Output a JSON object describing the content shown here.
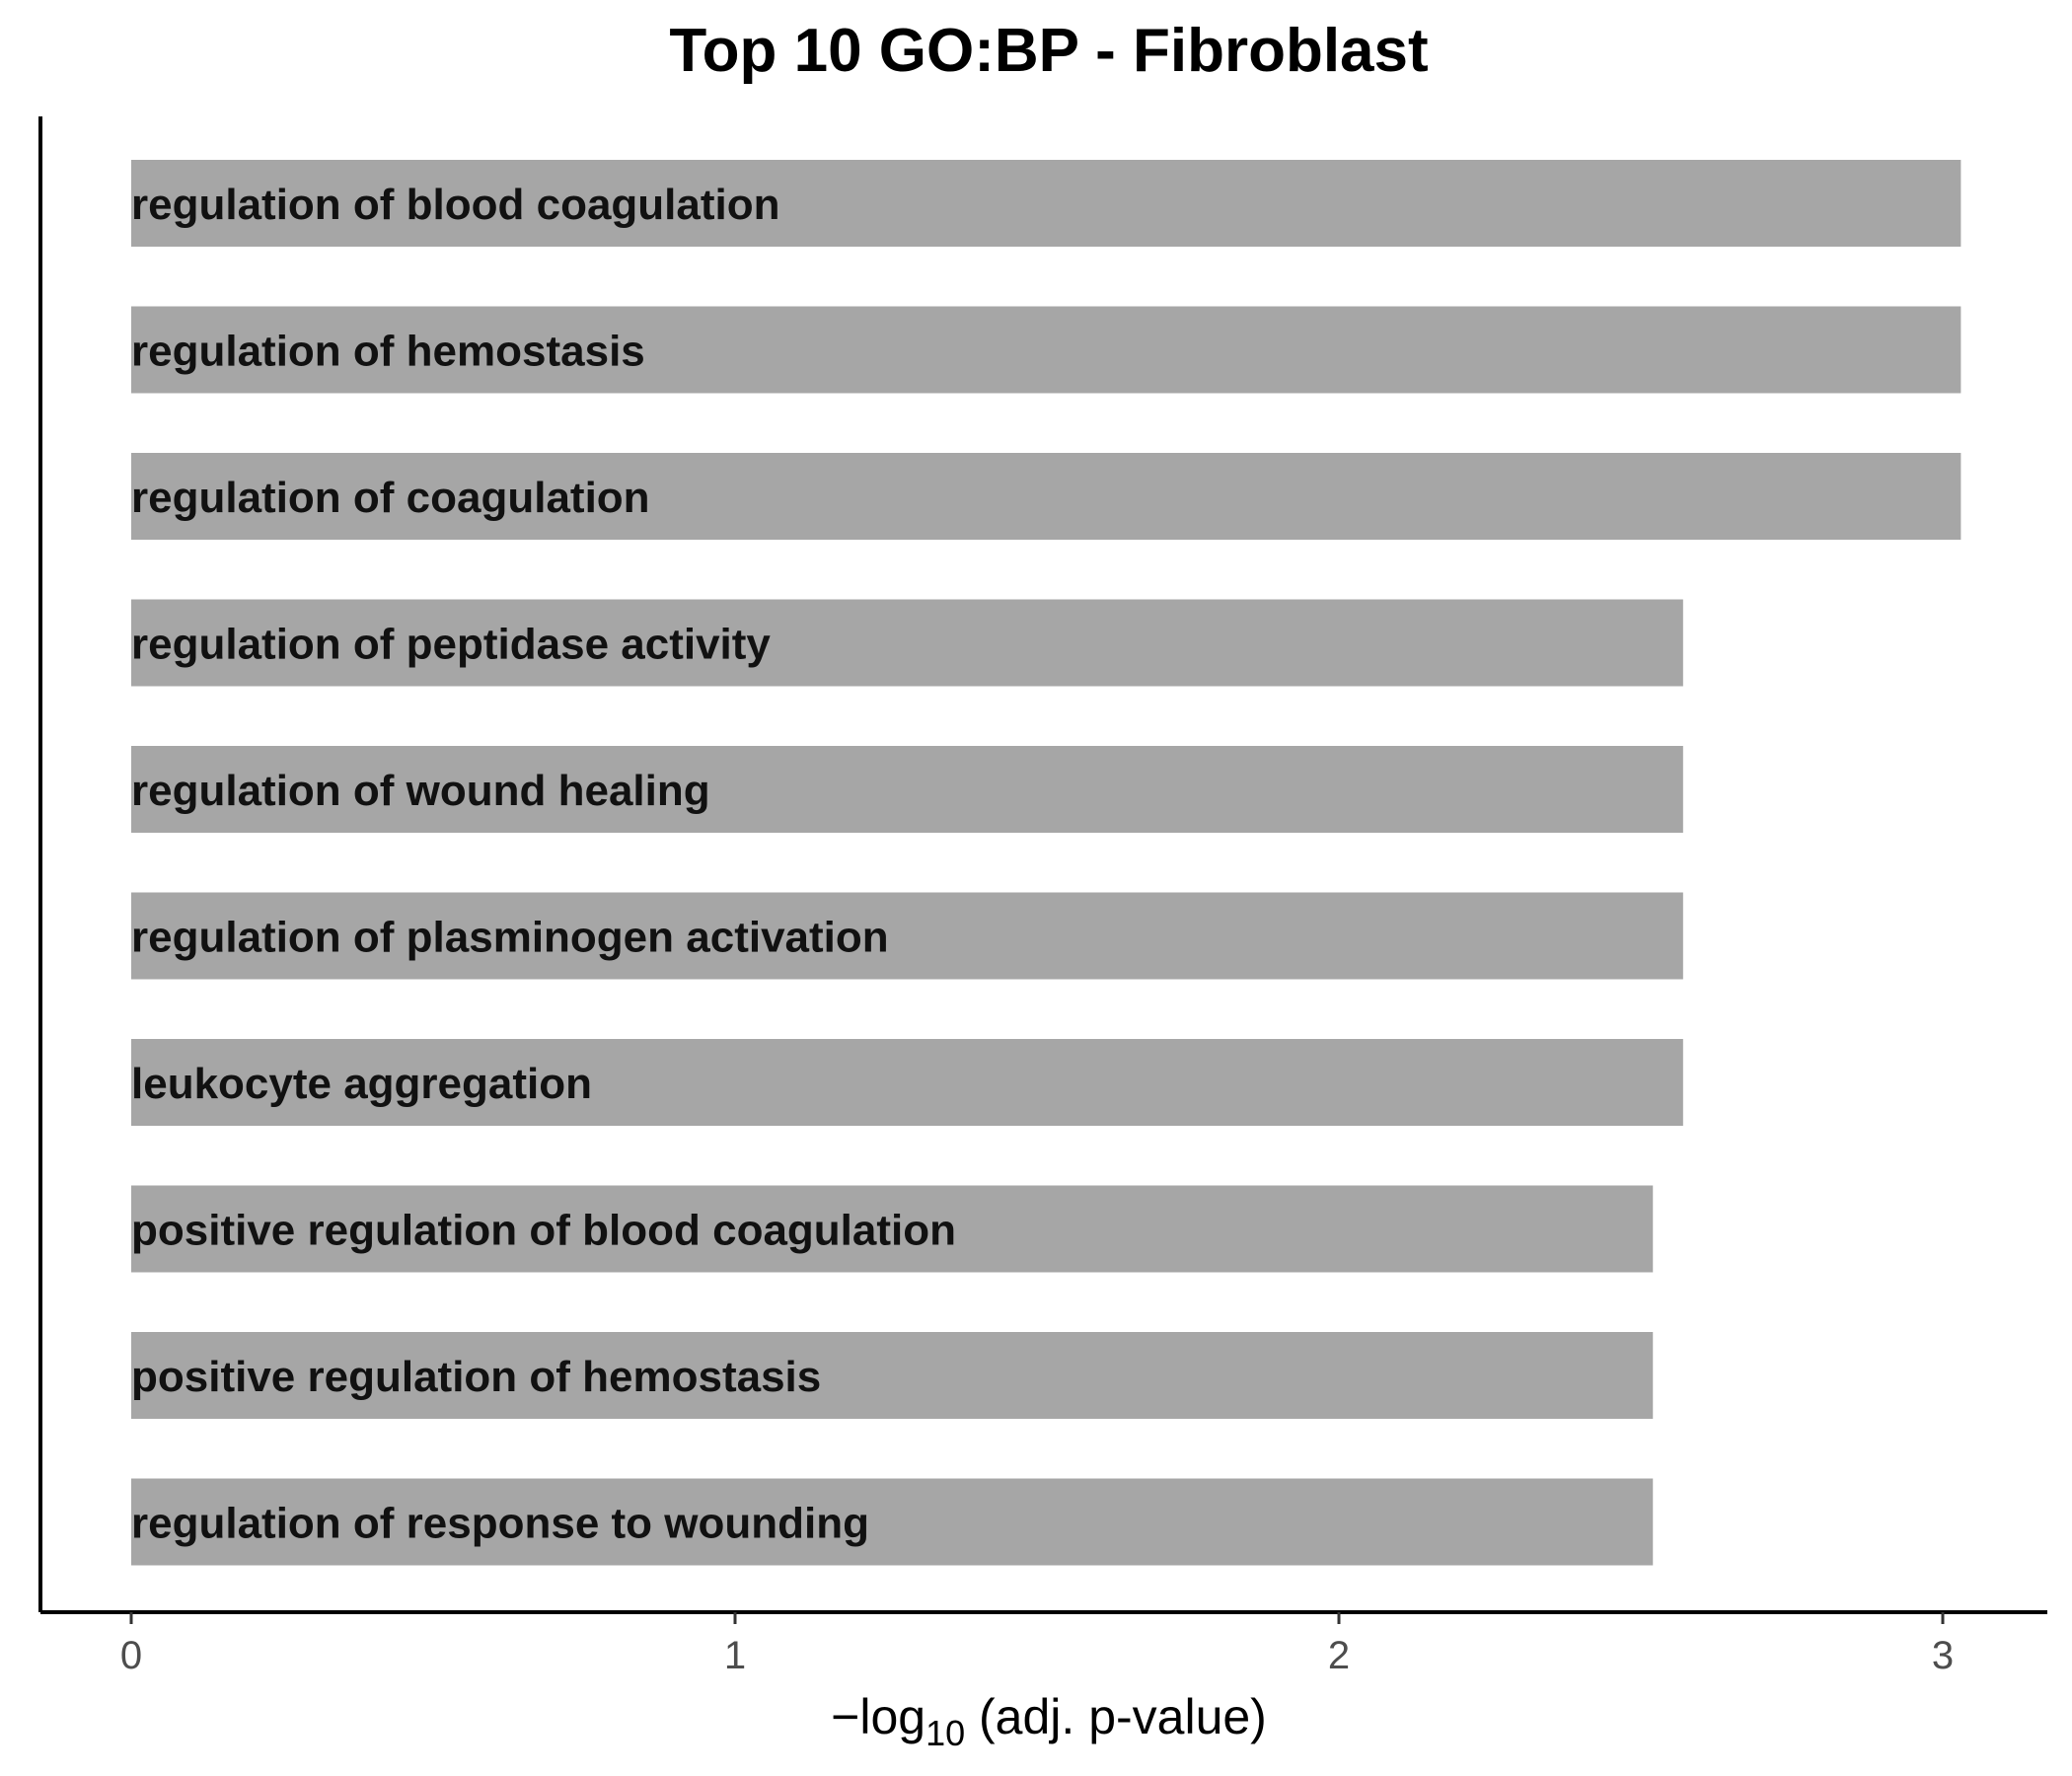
{
  "chart_data": {
    "type": "bar",
    "orientation": "horizontal",
    "title": "Top 10 GO:BP - Fibroblast",
    "xlabel": "−log₁₀ (adj. p-value)",
    "xlabel_parts": {
      "prefix": "−log",
      "subscript": "10",
      "suffix": " (adj. p-value)"
    },
    "ylabel": "",
    "xlim": [
      0,
      3.15
    ],
    "xticks": [
      0,
      1,
      2,
      3
    ],
    "grid": false,
    "bar_color": "#a6a6a6",
    "categories": [
      "regulation of blood coagulation",
      "regulation of hemostasis",
      "regulation of coagulation",
      "regulation of peptidase activity",
      "regulation of wound healing",
      "regulation of plasminogen activation",
      "leukocyte aggregation",
      "positive regulation of blood coagulation",
      "positive regulation of hemostasis",
      "regulation of response to wounding"
    ],
    "values": [
      3.03,
      3.03,
      3.03,
      2.57,
      2.57,
      2.57,
      2.57,
      2.52,
      2.52,
      2.52
    ]
  }
}
